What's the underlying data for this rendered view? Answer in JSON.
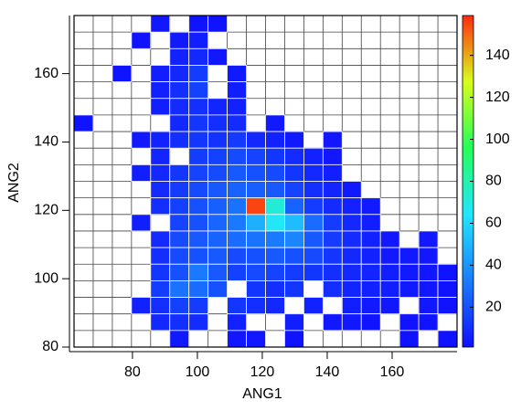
{
  "chart_data": {
    "type": "heatmap",
    "xlabel": "ANG1",
    "ylabel": "ANG2",
    "xlim": [
      62,
      180
    ],
    "ylim": [
      80,
      177
    ],
    "xticks": [
      80,
      100,
      120,
      140,
      160
    ],
    "yticks": [
      80,
      100,
      120,
      140,
      160
    ],
    "zlim": [
      1,
      159
    ],
    "zticks": [
      20,
      40,
      60,
      80,
      100,
      120,
      140
    ],
    "colorscale": [
      "#1010ff",
      "#1a7cff",
      "#22e6ff",
      "#22ff5a",
      "#d8ff1a",
      "#ff2a10"
    ],
    "z": [
      [
        null,
        null,
        null,
        null,
        3,
        null,
        2,
        2,
        null,
        null,
        null,
        null,
        null,
        null,
        null,
        null,
        null,
        null,
        null,
        null
      ],
      [
        null,
        null,
        null,
        2,
        null,
        4,
        5,
        null,
        null,
        null,
        null,
        null,
        null,
        null,
        null,
        null,
        null,
        null,
        null,
        null
      ],
      [
        null,
        null,
        null,
        null,
        null,
        6,
        8,
        3,
        null,
        null,
        null,
        null,
        null,
        null,
        null,
        null,
        null,
        null,
        null,
        null
      ],
      [
        null,
        null,
        2,
        null,
        5,
        8,
        14,
        null,
        4,
        null,
        null,
        null,
        null,
        null,
        null,
        null,
        null,
        null,
        null,
        null
      ],
      [
        null,
        null,
        null,
        null,
        6,
        10,
        15,
        null,
        5,
        null,
        null,
        null,
        null,
        null,
        null,
        null,
        null,
        null,
        null,
        null
      ],
      [
        null,
        null,
        null,
        null,
        5,
        9,
        10,
        7,
        6,
        null,
        null,
        null,
        null,
        null,
        null,
        null,
        null,
        null,
        null,
        null
      ],
      [
        2,
        null,
        null,
        null,
        null,
        8,
        12,
        10,
        9,
        null,
        4,
        null,
        null,
        null,
        null,
        null,
        null,
        null,
        null,
        null
      ],
      [
        null,
        null,
        null,
        4,
        6,
        10,
        12,
        11,
        13,
        8,
        6,
        4,
        null,
        3,
        null,
        null,
        null,
        null,
        null,
        null
      ],
      [
        null,
        null,
        null,
        null,
        7,
        null,
        14,
        15,
        18,
        16,
        12,
        9,
        6,
        3,
        null,
        null,
        null,
        null,
        null,
        null
      ],
      [
        null,
        null,
        null,
        5,
        8,
        12,
        16,
        18,
        22,
        20,
        18,
        12,
        8,
        5,
        null,
        null,
        null,
        null,
        null,
        null
      ],
      [
        null,
        null,
        null,
        null,
        9,
        14,
        18,
        22,
        25,
        24,
        22,
        16,
        10,
        7,
        4,
        null,
        null,
        null,
        null,
        null
      ],
      [
        null,
        null,
        null,
        null,
        10,
        15,
        20,
        24,
        30,
        155,
        72,
        25,
        14,
        9,
        6,
        4,
        null,
        null,
        null,
        null
      ],
      [
        null,
        null,
        null,
        5,
        null,
        16,
        20,
        26,
        32,
        48,
        66,
        52,
        28,
        14,
        8,
        5,
        null,
        null,
        null,
        null
      ],
      [
        null,
        null,
        null,
        null,
        9,
        18,
        22,
        25,
        28,
        30,
        32,
        35,
        22,
        14,
        9,
        6,
        3,
        null,
        3,
        null
      ],
      [
        null,
        null,
        null,
        null,
        10,
        18,
        20,
        22,
        18,
        20,
        22,
        20,
        18,
        12,
        8,
        6,
        4,
        4,
        3,
        null
      ],
      [
        null,
        null,
        null,
        null,
        12,
        20,
        32,
        22,
        15,
        18,
        16,
        14,
        12,
        10,
        8,
        7,
        5,
        4,
        3,
        2
      ],
      [
        null,
        null,
        null,
        null,
        14,
        30,
        28,
        20,
        null,
        12,
        10,
        12,
        null,
        10,
        7,
        6,
        5,
        4,
        3,
        2
      ],
      [
        null,
        null,
        null,
        6,
        10,
        15,
        14,
        null,
        12,
        10,
        8,
        null,
        6,
        null,
        5,
        4,
        3,
        null,
        3,
        2
      ],
      [
        null,
        null,
        null,
        null,
        8,
        10,
        9,
        null,
        6,
        null,
        null,
        5,
        null,
        3,
        3,
        2,
        null,
        2,
        2,
        null
      ],
      [
        null,
        null,
        null,
        null,
        null,
        4,
        null,
        null,
        3,
        3,
        null,
        2,
        null,
        null,
        null,
        null,
        null,
        2,
        null,
        2
      ]
    ]
  }
}
